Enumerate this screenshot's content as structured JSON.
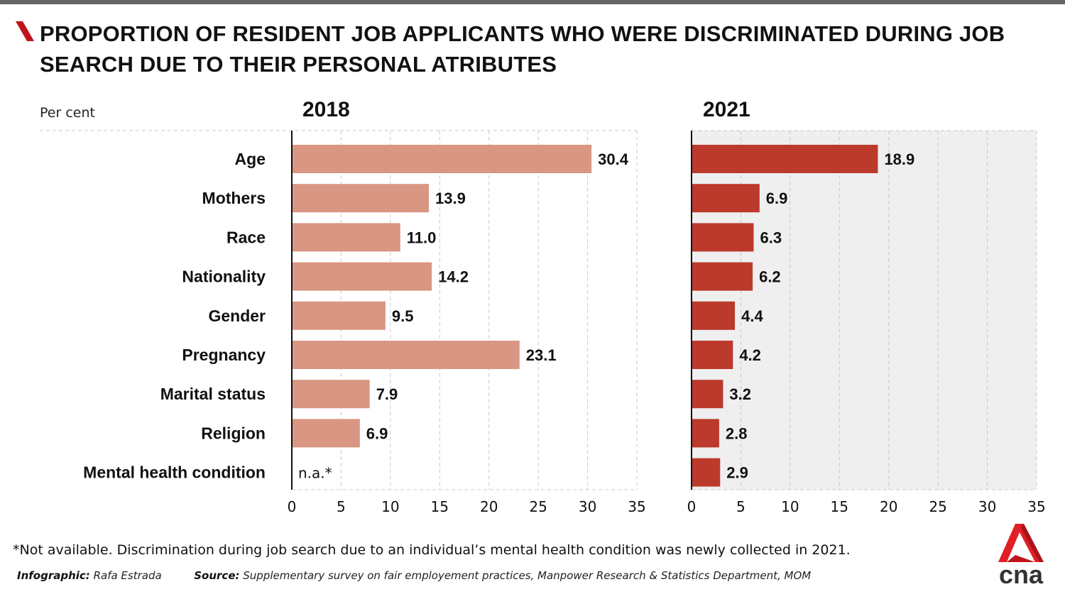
{
  "header": {
    "title": "PROPORTION OF RESIDENT JOB APPLICANTS WHO WERE DISCRIMINATED DURING JOB SEARCH DUE TO THEIR PERSONAL ATRIBUTES",
    "unit_label": "Per cent"
  },
  "colors": {
    "bar_2018": "#d99682",
    "bar_2021": "#bb3a2b",
    "panel_2021_bg": "#efefef",
    "accent": "#c0141b",
    "topbar": "#666666"
  },
  "chart_data": [
    {
      "type": "bar",
      "orientation": "horizontal",
      "title": "2018",
      "categories": [
        "Age",
        "Mothers",
        "Race",
        "Nationality",
        "Gender",
        "Pregnancy",
        "Marital status",
        "Religion",
        "Mental health condition"
      ],
      "values": [
        30.4,
        13.9,
        11.0,
        14.2,
        9.5,
        23.1,
        7.9,
        6.9,
        null
      ],
      "value_labels": [
        "30.4",
        "13.9",
        "11.0",
        "14.2",
        "9.5",
        "23.1",
        "7.9",
        "6.9",
        "n.a.*"
      ],
      "xlabel": "",
      "ylabel": "Per cent",
      "xlim": [
        0,
        35
      ],
      "xticks": [
        "0",
        "5",
        "10",
        "15",
        "20",
        "25",
        "30",
        "35"
      ],
      "grid": true
    },
    {
      "type": "bar",
      "orientation": "horizontal",
      "title": "2021",
      "categories": [
        "Age",
        "Mothers",
        "Race",
        "Nationality",
        "Gender",
        "Pregnancy",
        "Marital status",
        "Religion",
        "Mental health condition"
      ],
      "values": [
        18.9,
        6.9,
        6.3,
        6.2,
        4.4,
        4.2,
        3.2,
        2.8,
        2.9
      ],
      "value_labels": [
        "18.9",
        "6.9",
        "6.3",
        "6.2",
        "4.4",
        "4.2",
        "3.2",
        "2.8",
        "2.9"
      ],
      "xlabel": "",
      "xlim": [
        0,
        35
      ],
      "xticks": [
        "0",
        "5",
        "10",
        "15",
        "20",
        "25",
        "30",
        "35"
      ],
      "grid": true
    }
  ],
  "footer": {
    "footnote": "*Not available. Discrimination during job search due to an individual’s mental health condition was newly collected in 2021.",
    "infographic_label": "Infographic:",
    "infographic_value": "Rafa Estrada",
    "source_label": "Source:",
    "source_value": "Supplementary survey on fair employement practices, Manpower Research & Statistics Department, MOM",
    "logo_text": "cna"
  }
}
